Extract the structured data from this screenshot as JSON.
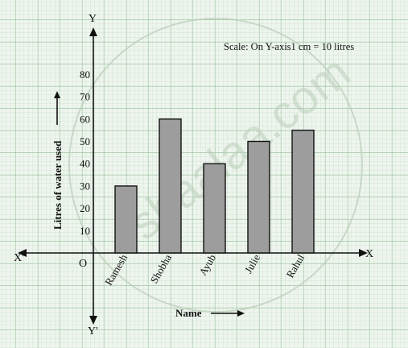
{
  "chart_data": {
    "type": "bar",
    "categories": [
      "Ramesh",
      "Shobha",
      "Ayub",
      "Julie",
      "Rahul"
    ],
    "values": [
      30,
      60,
      40,
      50,
      55
    ],
    "ylabel": "Litres of water used",
    "xlabel": "Name",
    "ylim": [
      0,
      80
    ],
    "yticks": [
      10,
      20,
      30,
      40,
      50,
      60,
      70,
      80
    ],
    "scale_note": "Scale: On Y-axis1 cm = 10 litres",
    "axis_labels": {
      "x_pos": "X",
      "x_neg": "X'",
      "y_pos": "Y",
      "y_neg": "Y'",
      "origin": "O"
    },
    "grid": true,
    "watermark": "shaalaa.com"
  },
  "colors": {
    "paper": "#eef5ee",
    "grid_minor": "#bcd6bd",
    "grid_major": "#94bd96",
    "bar_fill": "#9d9d9d",
    "bar_stroke": "#111111",
    "axis": "#111111"
  }
}
